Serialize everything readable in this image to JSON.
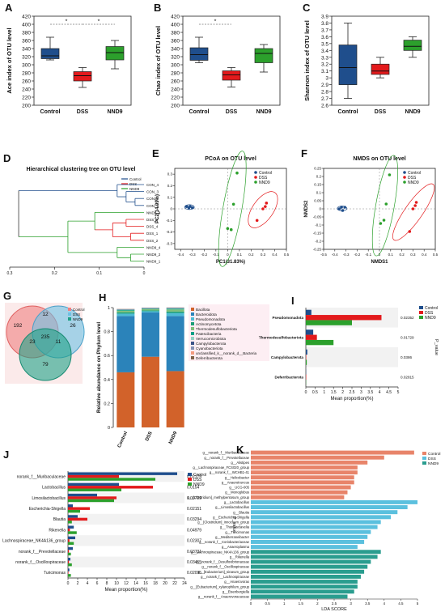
{
  "colors": {
    "control": "#1f4e8c",
    "dss": "#e31a1c",
    "nnd9": "#2ca02c",
    "stack": [
      "#d2622a",
      "#2b83ba",
      "#4dbbd5",
      "#1b9e77",
      "#7fbf7b",
      "#00a087",
      "#91d1c2",
      "#3c5488",
      "#8491b4",
      "#f39b7f",
      "#7e6148",
      "#dc0000"
    ],
    "lda_control": "#e8846a",
    "lda_dss": "#5bc0de",
    "lda_nnd9": "#2a9d8f"
  },
  "panels": {
    "A": {
      "letter": "A",
      "ylabel": "Ace index of OTU level",
      "ylim": [
        200,
        420
      ],
      "yticks": [
        "200",
        "220",
        "240",
        "260",
        "280",
        "300",
        "320",
        "340",
        "360",
        "380",
        "400",
        "420"
      ],
      "categories": [
        "Control",
        "DSS",
        "NND9"
      ],
      "boxes": [
        {
          "q1": 315,
          "median": 322,
          "q3": 340,
          "min": 312,
          "max": 368
        },
        {
          "q1": 260,
          "median": 273,
          "q3": 283,
          "min": 244,
          "max": 293
        },
        {
          "q1": 312,
          "median": 330,
          "q3": 345,
          "min": 290,
          "max": 360
        }
      ],
      "sig": [
        {
          "from": 0,
          "to": 1,
          "label": "*"
        },
        {
          "from": 1,
          "to": 2,
          "label": "*"
        }
      ]
    },
    "B": {
      "letter": "B",
      "ylabel": "Chao index of OTU level",
      "ylim": [
        200,
        420
      ],
      "yticks": [
        "200",
        "220",
        "240",
        "260",
        "280",
        "300",
        "320",
        "340",
        "360",
        "380",
        "400",
        "420"
      ],
      "categories": [
        "Control",
        "DSS",
        "NND9"
      ],
      "boxes": [
        {
          "q1": 311,
          "median": 325,
          "q3": 342,
          "min": 305,
          "max": 368
        },
        {
          "q1": 262,
          "median": 275,
          "q3": 285,
          "min": 245,
          "max": 293
        },
        {
          "q1": 305,
          "median": 328,
          "q3": 340,
          "min": 282,
          "max": 350
        }
      ],
      "sig": [
        {
          "from": 0,
          "to": 1,
          "label": "*"
        }
      ]
    },
    "C": {
      "letter": "C",
      "ylabel": "Shannon index of OTU level",
      "ylim": [
        2.6,
        3.9
      ],
      "yticks": [
        "2.6",
        "2.7",
        "2.8",
        "2.9",
        "3",
        "3.1",
        "3.2",
        "3.3",
        "3.4",
        "3.5",
        "3.6",
        "3.7",
        "3.8",
        "3.9"
      ],
      "categories": [
        "Control",
        "DSS",
        "NND9"
      ],
      "boxes": [
        {
          "q1": 2.9,
          "median": 3.15,
          "q3": 3.48,
          "min": 2.7,
          "max": 3.8
        },
        {
          "q1": 3.05,
          "median": 3.1,
          "q3": 3.2,
          "min": 3.0,
          "max": 3.3
        },
        {
          "q1": 3.4,
          "median": 3.46,
          "q3": 3.55,
          "min": 3.3,
          "max": 3.6
        }
      ],
      "sig": []
    },
    "D": {
      "letter": "D",
      "title": "Hierarchical clustering tree on OTU level",
      "legend": [
        "Control",
        "DSS",
        "NND9"
      ],
      "leaves": [
        "CON_4",
        "CON_3",
        "CON_2",
        "CON_1",
        "NND9_3",
        "DSS_3",
        "DSS_4",
        "DSS_1",
        "DSS_2",
        "NND9_4",
        "NND9_2",
        "NND9_1"
      ],
      "xticks": [
        "0.3",
        "0.2",
        "0.1",
        "0"
      ]
    },
    "E": {
      "letter": "E",
      "title": "PCoA on OTU level",
      "xlabel": "PC1(31.83%)",
      "ylabel": "PC2(14.99%)",
      "legend": [
        "Control",
        "DSS",
        "NND9"
      ],
      "xticks": [
        "-0.4",
        "-0.3",
        "-0.2",
        "-0.1",
        "0",
        "0.1",
        "0.2",
        "0.3",
        "0.4",
        "0.5"
      ],
      "yticks": [
        "-0.3",
        "-0.2",
        "-0.1",
        "0",
        "0.1",
        "0.2",
        "0.3"
      ],
      "xlim": [
        -0.45,
        0.5
      ],
      "ylim": [
        -0.35,
        0.35
      ],
      "points": {
        "control": [
          [
            -0.35,
            0.02
          ],
          [
            -0.33,
            0.01
          ],
          [
            -0.32,
            0.02
          ],
          [
            -0.3,
            0.01
          ]
        ],
        "dss": [
          [
            0.25,
            -0.1
          ],
          [
            0.3,
            0.0
          ],
          [
            0.32,
            0.02
          ],
          [
            0.33,
            0.05
          ]
        ],
        "nnd9": [
          [
            0.08,
            0.31
          ],
          [
            0.05,
            0.04
          ],
          [
            0.0,
            -0.17
          ],
          [
            0.03,
            -0.18
          ]
        ]
      }
    },
    "F": {
      "letter": "F",
      "title": "NMDS on OTU level",
      "xlabel": "NMDS1",
      "ylabel": "NMDS2",
      "legend": [
        "Control",
        "DSS",
        "NND9"
      ],
      "xticks": [
        "-0.5",
        "-0.4",
        "-0.3",
        "-0.2",
        "-0.1",
        "0",
        "0.1",
        "0.2",
        "0.3",
        "0.4",
        "0.5"
      ],
      "yticks": [
        "-0.25",
        "-0.2",
        "-0.15",
        "-0.1",
        "-0.05",
        "0",
        "0.05",
        "0.1",
        "0.15",
        "0.2",
        "0.25"
      ],
      "xlim": [
        -0.5,
        0.5
      ],
      "ylim": [
        -0.25,
        0.25
      ],
      "points": {
        "control": [
          [
            -0.36,
            0.0
          ],
          [
            -0.34,
            0.01
          ],
          [
            -0.33,
            -0.01
          ],
          [
            -0.31,
            0.01
          ]
        ],
        "dss": [
          [
            0.27,
            -0.14
          ],
          [
            0.3,
            0.0
          ],
          [
            0.32,
            0.02
          ],
          [
            0.33,
            0.04
          ]
        ],
        "nnd9": [
          [
            0.09,
            0.21
          ],
          [
            0.06,
            0.03
          ],
          [
            0.01,
            -0.09
          ],
          [
            0.04,
            -0.07
          ]
        ]
      }
    },
    "G": {
      "letter": "G",
      "legend": [
        "Control",
        "DSS",
        "NND9"
      ],
      "counts": [
        "192",
        "12",
        "26",
        "23",
        "235",
        "11",
        "79"
      ]
    },
    "H": {
      "letter": "H",
      "ylabel": "Relative abundance on Phylum level",
      "yticks": [
        "0",
        "0.2",
        "0.4",
        "0.6",
        "0.8",
        "1"
      ],
      "categories": [
        "Control",
        "DSS",
        "NND9"
      ],
      "phyla": [
        "Bacillota",
        "Bacteroidota",
        "Pseudomonadota",
        "Actinomycetota",
        "Thermodesulfobacteriota",
        "Patescibacteria",
        "Verrucomicrobiota",
        "Campylobacterota",
        "Cyanobacteriota",
        "unclassified_k__norank_d__Bacteria",
        "Deferribacterota"
      ],
      "values": [
        [
          0.46,
          0.47,
          0.02,
          0.01,
          0.015,
          0.005,
          0.003,
          0.003,
          0.002,
          0.001,
          0.001
        ],
        [
          0.59,
          0.37,
          0.01,
          0.007,
          0.01,
          0.003,
          0.003,
          0.003,
          0.002,
          0.001,
          0.001
        ],
        [
          0.47,
          0.46,
          0.025,
          0.012,
          0.018,
          0.005,
          0.004,
          0.003,
          0.002,
          0.001,
          0.001
        ]
      ]
    },
    "I": {
      "letter": "I",
      "legend": [
        "Control",
        "DSS",
        "NND9"
      ],
      "labels": [
        "Pseudomonadota",
        "Thermodesulfobacteriota",
        "Campylobacterota",
        "Deferribacterota"
      ],
      "pvalues": [
        "0.02352",
        "0.01729",
        "0.0386",
        "0.02815"
      ],
      "pvalue_label": "P_value",
      "xlabel": "Mean proportion(%)",
      "xticks": [
        "0",
        "0.5",
        "1",
        "1.5",
        "2",
        "2.5",
        "3",
        "3.5",
        "4",
        "4.5",
        "5"
      ],
      "xlim": [
        0,
        5
      ],
      "values": [
        [
          0.3,
          4.1,
          2.5
        ],
        [
          0.4,
          0.6,
          1.5
        ],
        [
          0.08,
          0.02,
          0.05
        ],
        [
          0.01,
          0.02,
          0.01
        ]
      ]
    },
    "J": {
      "letter": "J",
      "legend": [
        "Control",
        "DSS",
        "NND9"
      ],
      "labels": [
        "norank_f__Muribaculaceae",
        "Lactobacillus",
        "Limosilactobacillus",
        "Escherichia-Shigella",
        "Blautia",
        "Rikenella",
        "Lachnospiraceae_NK4A136_group",
        "norank_f__Prevotellaceae",
        "norank_f__Oscillospiraceae",
        "Turicimonas"
      ],
      "pvalues": [
        "0.02179",
        "0.0154",
        "0.00729",
        "0.02151",
        "0.03294",
        "0.04979",
        "0.02307",
        "0.03731",
        "0.03455",
        "0.02095"
      ],
      "pvalue_label": "P_value",
      "xlabel": "Mean proportion(%)",
      "xticks": [
        "0",
        "2",
        "4",
        "6",
        "8",
        "10",
        "12",
        "14",
        "16",
        "18",
        "20",
        "22",
        "24"
      ],
      "xlim": [
        0,
        24
      ],
      "values": [
        [
          22.5,
          10.5,
          18.0
        ],
        [
          10.5,
          17.5,
          11.0
        ],
        [
          6.0,
          10.0,
          9.5
        ],
        [
          1.0,
          4.5,
          2.5
        ],
        [
          2.0,
          4.0,
          0.8
        ],
        [
          1.2,
          0.4,
          1.8
        ],
        [
          1.5,
          0.3,
          1.2
        ],
        [
          1.0,
          0.2,
          0.6
        ],
        [
          0.5,
          0.2,
          0.8
        ],
        [
          0.3,
          0.1,
          0.6
        ]
      ]
    },
    "K": {
      "letter": "K",
      "legend": [
        "Control",
        "DSS",
        "NND9"
      ],
      "xlabel": "LDA SCORE",
      "xticks": [
        "0",
        "0.5",
        "1",
        "1.5",
        "2",
        "2.5",
        "3",
        "3.5",
        "4",
        "4.5",
        "5"
      ],
      "xlim": [
        0,
        5
      ],
      "labels": [
        "g__norank_f__Muribaculaceae",
        "g__norank_f__Prevotellaceae",
        "g__Alistipes",
        "g__Lachnospiraceae_FCS020_group",
        "g__norank_f__WCHB1-41",
        "g__Helicobacter",
        "g__Anaerotruncus",
        "g__UCG-005",
        "g__Monoglobus",
        "g__[Clostridium]_methylpentosum_group",
        "g__Lactobacillus",
        "g__Limosilactobacillus",
        "g__Blautia",
        "g__Escherichia-Shigella",
        "g__[Clostridium]_innocuum_group",
        "g__Thomasclavelia",
        "g__Turicimonas",
        "g__Mediterraneibacter",
        "g__norank_f__Coriobacteriaceae",
        "g__Anaeroplasma",
        "g__Lachnospiraceae_NK4A136_group",
        "g__Rikenella",
        "g__norank_f__Desulfovibrionaceae",
        "g__norank_f__Oscillospiraceae",
        "g__[Eubacterium]_siraeum_group",
        "g__norank_f__Lachnospiraceae",
        "g__Anaerovorax",
        "g__[Eubacterium]_xylanophilum_group",
        "g__Eisenbergiella",
        "g__norank_f__Anaerovoracaceae"
      ],
      "groups": [
        "control",
        "control",
        "control",
        "control",
        "control",
        "control",
        "control",
        "control",
        "control",
        "control",
        "dss",
        "dss",
        "dss",
        "dss",
        "dss",
        "dss",
        "dss",
        "dss",
        "dss",
        "dss",
        "nnd9",
        "nnd9",
        "nnd9",
        "nnd9",
        "nnd9",
        "nnd9",
        "nnd9",
        "nnd9",
        "nnd9",
        "nnd9"
      ],
      "values": [
        4.9,
        4.0,
        3.5,
        3.2,
        3.2,
        3.1,
        3.1,
        3.0,
        2.9,
        2.8,
        5.0,
        4.7,
        4.4,
        4.2,
        3.9,
        3.8,
        3.6,
        3.5,
        3.4,
        3.2,
        3.9,
        3.8,
        3.6,
        3.5,
        3.4,
        3.3,
        3.2,
        3.2,
        3.1,
        2.9
      ]
    }
  },
  "chart_data": [
    {
      "panel": "A",
      "type": "box",
      "categories": [
        "Control",
        "DSS",
        "NND9"
      ],
      "ylabel": "Ace index of OTU level",
      "ylim": [
        200,
        420
      ],
      "series": [
        {
          "name": "Control",
          "values": [
            312,
            315,
            322,
            340,
            368
          ]
        },
        {
          "name": "DSS",
          "values": [
            244,
            260,
            273,
            283,
            293
          ]
        },
        {
          "name": "NND9",
          "values": [
            290,
            312,
            330,
            345,
            360
          ]
        }
      ]
    },
    {
      "panel": "B",
      "type": "box",
      "categories": [
        "Control",
        "DSS",
        "NND9"
      ],
      "ylabel": "Chao index of OTU level",
      "ylim": [
        200,
        420
      ],
      "series": [
        {
          "name": "Control",
          "values": [
            305,
            311,
            325,
            342,
            368
          ]
        },
        {
          "name": "DSS",
          "values": [
            245,
            262,
            275,
            285,
            293
          ]
        },
        {
          "name": "NND9",
          "values": [
            282,
            305,
            328,
            340,
            350
          ]
        }
      ]
    },
    {
      "panel": "C",
      "type": "box",
      "categories": [
        "Control",
        "DSS",
        "NND9"
      ],
      "ylabel": "Shannon index of OTU level",
      "ylim": [
        2.6,
        3.9
      ],
      "series": [
        {
          "name": "Control",
          "values": [
            2.7,
            2.9,
            3.15,
            3.48,
            3.8
          ]
        },
        {
          "name": "DSS",
          "values": [
            3.0,
            3.05,
            3.1,
            3.2,
            3.3
          ]
        },
        {
          "name": "NND9",
          "values": [
            3.3,
            3.4,
            3.46,
            3.55,
            3.6
          ]
        }
      ]
    },
    {
      "panel": "E",
      "type": "scatter",
      "title": "PCoA on OTU level",
      "xlabel": "PC1(31.83%)",
      "ylabel": "PC2(14.99%)",
      "xlim": [
        -0.45,
        0.5
      ],
      "ylim": [
        -0.35,
        0.35
      ]
    },
    {
      "panel": "F",
      "type": "scatter",
      "title": "NMDS on OTU level",
      "xlabel": "NMDS1",
      "ylabel": "NMDS2",
      "xlim": [
        -0.5,
        0.5
      ],
      "ylim": [
        -0.25,
        0.25
      ]
    },
    {
      "panel": "H",
      "type": "bar",
      "ylabel": "Relative abundance on Phylum level",
      "categories": [
        "Control",
        "DSS",
        "NND9"
      ]
    },
    {
      "panel": "I",
      "type": "bar",
      "xlabel": "Mean proportion(%)",
      "categories": [
        "Pseudomonadota",
        "Thermodesulfobacteriota",
        "Campylobacterota",
        "Deferribacterota"
      ]
    },
    {
      "panel": "J",
      "type": "bar",
      "xlabel": "Mean proportion(%)",
      "categories": [
        "norank_f__Muribaculaceae",
        "Lactobacillus",
        "Limosilactobacillus",
        "Escherichia-Shigella",
        "Blautia",
        "Rikenella",
        "Lachnospiraceae_NK4A136_group",
        "norank_f__Prevotellaceae",
        "norank_f__Oscillospiraceae",
        "Turicimonas"
      ]
    },
    {
      "panel": "K",
      "type": "bar",
      "xlabel": "LDA SCORE"
    }
  ]
}
